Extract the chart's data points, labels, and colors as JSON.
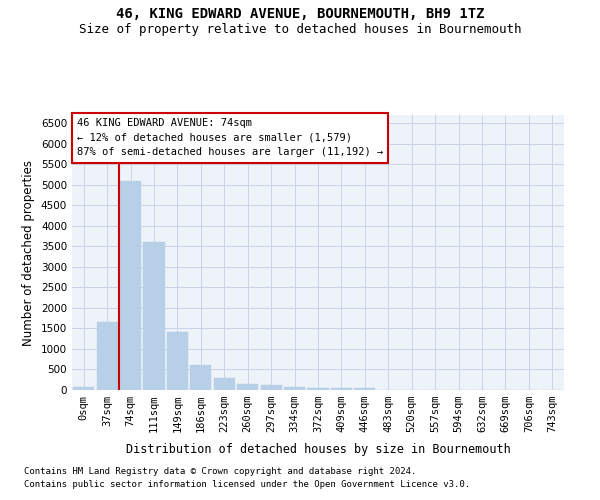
{
  "title": "46, KING EDWARD AVENUE, BOURNEMOUTH, BH9 1TZ",
  "subtitle": "Size of property relative to detached houses in Bournemouth",
  "xlabel": "Distribution of detached houses by size in Bournemouth",
  "ylabel": "Number of detached properties",
  "footnote1": "Contains HM Land Registry data © Crown copyright and database right 2024.",
  "footnote2": "Contains public sector information licensed under the Open Government Licence v3.0.",
  "bar_labels": [
    "0sqm",
    "37sqm",
    "74sqm",
    "111sqm",
    "149sqm",
    "186sqm",
    "223sqm",
    "260sqm",
    "297sqm",
    "334sqm",
    "372sqm",
    "409sqm",
    "446sqm",
    "483sqm",
    "520sqm",
    "557sqm",
    "594sqm",
    "632sqm",
    "669sqm",
    "706sqm",
    "743sqm"
  ],
  "bar_heights": [
    70,
    1650,
    5080,
    3600,
    1420,
    620,
    290,
    145,
    110,
    80,
    60,
    45,
    45,
    0,
    0,
    0,
    0,
    0,
    0,
    0,
    0
  ],
  "bar_color": "#b8cfe8",
  "bar_edge_color": "#b8cfe8",
  "grid_color": "#c8d4e8",
  "background_color": "#eef2f9",
  "vline_color": "#cc0000",
  "annotation_box_color": "#cc0000",
  "annotation_box_fill": "#ffffff",
  "ylim": [
    0,
    6700
  ],
  "yticks": [
    0,
    500,
    1000,
    1500,
    2000,
    2500,
    3000,
    3500,
    4000,
    4500,
    5000,
    5500,
    6000,
    6500
  ],
  "title_fontsize": 10,
  "subtitle_fontsize": 9,
  "axis_label_fontsize": 8.5,
  "tick_fontsize": 7.5,
  "annotation_fontsize": 7.5,
  "footnote_fontsize": 6.5
}
